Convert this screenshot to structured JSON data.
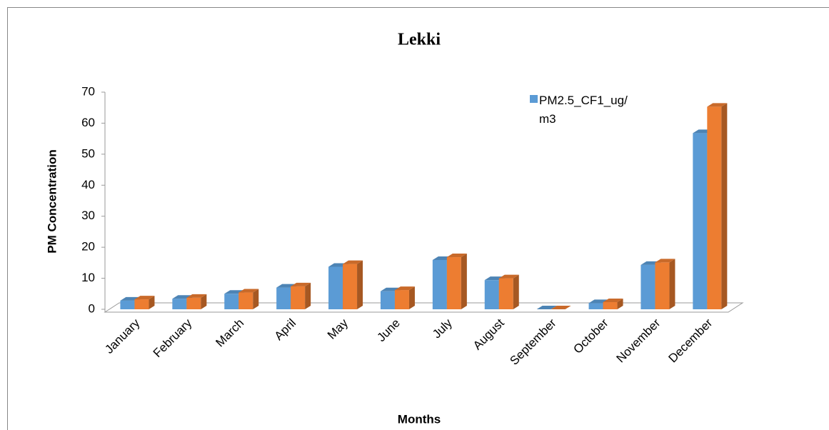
{
  "chart_data": {
    "type": "bar3d",
    "title": "Lekki",
    "x_label": "Months",
    "y_label": "PM Concentration",
    "categories": [
      "January",
      "February",
      "March",
      "April",
      "May",
      "June",
      "July",
      "August",
      "September",
      "October",
      "November",
      "December"
    ],
    "series": [
      {
        "name": "PM2.5_CF1_ug/m3",
        "color": "#5b9bd5",
        "values": [
          2.8,
          3.4,
          5,
          7,
          13.7,
          5.8,
          15.9,
          9.4,
          0,
          2,
          14.3,
          56.8
        ]
      },
      {
        "color": "#ed7d31",
        "values": [
          3.2,
          3.7,
          5.4,
          7.4,
          14.6,
          6.2,
          16.8,
          10,
          0,
          2.3,
          15.1,
          65.3
        ]
      }
    ],
    "ylim": [
      0,
      70
    ],
    "yticks": [
      0,
      10,
      20,
      30,
      40,
      50,
      60,
      70
    ],
    "grid": false
  }
}
